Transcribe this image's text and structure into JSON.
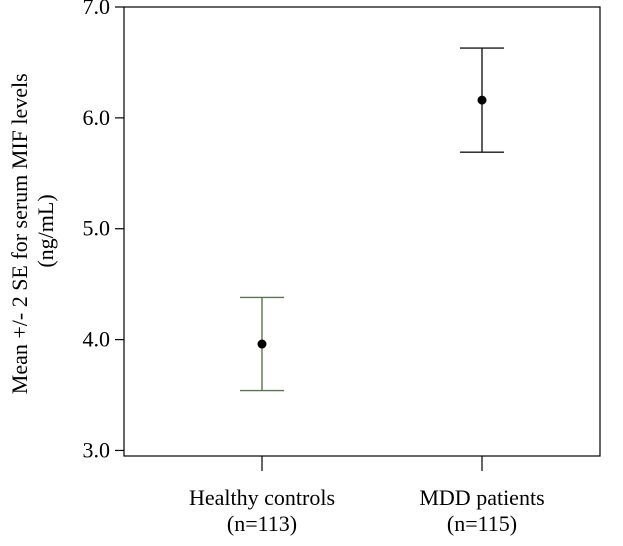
{
  "chart_data": {
    "type": "errorbar",
    "title": "",
    "xlabel": "",
    "ylabel_lines": [
      "Mean +/- 2 SE for serum MIF levels",
      "(ng/mL)"
    ],
    "ylim": [
      2.95,
      7.0
    ],
    "yticks": [
      "3.0",
      "4.0",
      "5.0",
      "6.0",
      "7.0"
    ],
    "ytick_values": [
      3.0,
      4.0,
      5.0,
      6.0,
      7.0
    ],
    "grid": false,
    "categories": [
      {
        "label": "Healthy controls",
        "n_label": "(n=113)",
        "mean": 3.96,
        "lower": 3.54,
        "upper": 4.38,
        "color": "#5b7352"
      },
      {
        "label": "MDD patients",
        "n_label": "(n=115)",
        "mean": 6.16,
        "lower": 5.69,
        "upper": 6.63,
        "color": "#1a1a1a"
      }
    ]
  }
}
